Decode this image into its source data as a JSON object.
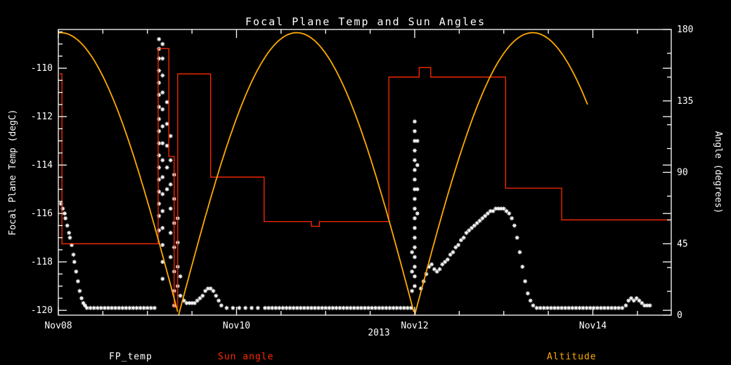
{
  "colors": {
    "background": "#000000",
    "axis": "#ffffff",
    "fp_temp": "#ffffff",
    "sun_angle": "#ff2a00",
    "altitude": "#ffaa00"
  },
  "chart_data": {
    "type": "scatter",
    "title": "Focal Plane Temp and Sun Angles",
    "xlabel": "2013",
    "x_range": [
      0,
      6.88
    ],
    "x_ticks": [
      {
        "t": 0,
        "label": "Nov08"
      },
      {
        "t": 2,
        "label": "Nov10"
      },
      {
        "t": 4,
        "label": "Nov12"
      },
      {
        "t": 6,
        "label": "Nov14"
      }
    ],
    "x_minor_step": 0.5,
    "left_axis": {
      "label": "Focal Plane Temp (degC)",
      "range": [
        -120.2,
        -108.4
      ],
      "ticks": [
        -120,
        -118,
        -116,
        -114,
        -112,
        -110
      ],
      "minor_step": 0.5
    },
    "right_axis": {
      "label": "Angle (degrees)",
      "range": [
        0,
        180
      ],
      "ticks": [
        0,
        45,
        90,
        135,
        180
      ],
      "minor_step": 15
    },
    "legend": [
      {
        "label": "FP_temp",
        "color": "#ffffff"
      },
      {
        "label": "Sun angle",
        "color": "#ff2a00"
      },
      {
        "label": "Altitude",
        "color": "#ffaa00"
      }
    ],
    "series": [
      {
        "name": "FP_temp",
        "axis": "left",
        "type": "scatter",
        "marker": "asterisk",
        "color": "#ffffff",
        "points": [
          [
            0.03,
            -115.6
          ],
          [
            0.05,
            -115.8
          ],
          [
            0.07,
            -116.0
          ],
          [
            0.08,
            -116.2
          ],
          [
            0.1,
            -116.5
          ],
          [
            0.12,
            -116.8
          ],
          [
            0.13,
            -117.0
          ],
          [
            0.15,
            -117.3
          ],
          [
            0.17,
            -117.7
          ],
          [
            0.18,
            -118.0
          ],
          [
            0.2,
            -118.4
          ],
          [
            0.22,
            -118.8
          ],
          [
            0.24,
            -119.2
          ],
          [
            0.26,
            -119.5
          ],
          [
            0.28,
            -119.7
          ],
          [
            0.3,
            -119.8
          ],
          [
            0.32,
            -119.9
          ],
          [
            0.36,
            -119.9
          ],
          [
            0.4,
            -119.9
          ],
          [
            0.44,
            -119.9
          ],
          [
            0.48,
            -119.9
          ],
          [
            0.52,
            -119.9
          ],
          [
            0.56,
            -119.9
          ],
          [
            0.6,
            -119.9
          ],
          [
            0.64,
            -119.9
          ],
          [
            0.68,
            -119.9
          ],
          [
            0.72,
            -119.9
          ],
          [
            0.76,
            -119.9
          ],
          [
            0.8,
            -119.9
          ],
          [
            0.84,
            -119.9
          ],
          [
            0.88,
            -119.9
          ],
          [
            0.92,
            -119.9
          ],
          [
            0.96,
            -119.9
          ],
          [
            1.0,
            -119.9
          ],
          [
            1.04,
            -119.9
          ],
          [
            1.08,
            -119.9
          ],
          [
            1.13,
            -108.8
          ],
          [
            1.13,
            -109.2
          ],
          [
            1.13,
            -109.6
          ],
          [
            1.13,
            -110.1
          ],
          [
            1.13,
            -110.6
          ],
          [
            1.13,
            -111.1
          ],
          [
            1.13,
            -111.6
          ],
          [
            1.13,
            -112.1
          ],
          [
            1.13,
            -112.6
          ],
          [
            1.13,
            -113.1
          ],
          [
            1.13,
            -113.6
          ],
          [
            1.13,
            -114.1
          ],
          [
            1.13,
            -114.6
          ],
          [
            1.13,
            -115.1
          ],
          [
            1.13,
            -115.6
          ],
          [
            1.13,
            -116.1
          ],
          [
            1.13,
            -116.7
          ],
          [
            1.17,
            -109.0
          ],
          [
            1.17,
            -109.6
          ],
          [
            1.17,
            -110.3
          ],
          [
            1.17,
            -111.0
          ],
          [
            1.17,
            -111.7
          ],
          [
            1.17,
            -112.4
          ],
          [
            1.17,
            -113.1
          ],
          [
            1.17,
            -113.8
          ],
          [
            1.17,
            -114.5
          ],
          [
            1.17,
            -115.2
          ],
          [
            1.17,
            -115.9
          ],
          [
            1.17,
            -116.6
          ],
          [
            1.17,
            -117.3
          ],
          [
            1.17,
            -118.0
          ],
          [
            1.17,
            -118.7
          ],
          [
            1.22,
            -111.4
          ],
          [
            1.22,
            -112.3
          ],
          [
            1.22,
            -113.2
          ],
          [
            1.22,
            -114.1
          ],
          [
            1.22,
            -115.0
          ],
          [
            1.26,
            -112.8
          ],
          [
            1.26,
            -113.8
          ],
          [
            1.26,
            -114.8
          ],
          [
            1.26,
            -115.8
          ],
          [
            1.26,
            -116.8
          ],
          [
            1.26,
            -117.8
          ],
          [
            1.3,
            -114.4
          ],
          [
            1.3,
            -115.4
          ],
          [
            1.3,
            -116.4
          ],
          [
            1.3,
            -117.4
          ],
          [
            1.3,
            -118.4
          ],
          [
            1.3,
            -119.2
          ],
          [
            1.3,
            -119.8
          ],
          [
            1.34,
            -116.2
          ],
          [
            1.34,
            -117.2
          ],
          [
            1.34,
            -118.2
          ],
          [
            1.34,
            -119.0
          ],
          [
            1.37,
            -118.6
          ],
          [
            1.37,
            -119.4
          ],
          [
            1.41,
            -119.6
          ],
          [
            1.44,
            -119.7
          ],
          [
            1.47,
            -119.7
          ],
          [
            1.5,
            -119.7
          ],
          [
            1.53,
            -119.7
          ],
          [
            1.56,
            -119.6
          ],
          [
            1.59,
            -119.5
          ],
          [
            1.62,
            -119.4
          ],
          [
            1.65,
            -119.2
          ],
          [
            1.68,
            -119.1
          ],
          [
            1.71,
            -119.1
          ],
          [
            1.74,
            -119.2
          ],
          [
            1.77,
            -119.4
          ],
          [
            1.8,
            -119.6
          ],
          [
            1.83,
            -119.8
          ],
          [
            1.89,
            -119.9
          ],
          [
            1.96,
            -119.9
          ],
          [
            2.03,
            -119.9
          ],
          [
            2.1,
            -119.9
          ],
          [
            2.17,
            -119.9
          ],
          [
            2.24,
            -119.9
          ],
          [
            2.32,
            -119.9
          ],
          [
            2.36,
            -119.9
          ],
          [
            2.4,
            -119.9
          ],
          [
            2.44,
            -119.9
          ],
          [
            2.48,
            -119.9
          ],
          [
            2.52,
            -119.9
          ],
          [
            2.56,
            -119.9
          ],
          [
            2.6,
            -119.9
          ],
          [
            2.64,
            -119.9
          ],
          [
            2.68,
            -119.9
          ],
          [
            2.72,
            -119.9
          ],
          [
            2.76,
            -119.9
          ],
          [
            2.8,
            -119.9
          ],
          [
            2.84,
            -119.9
          ],
          [
            2.88,
            -119.9
          ],
          [
            2.92,
            -119.9
          ],
          [
            2.96,
            -119.9
          ],
          [
            3.0,
            -119.9
          ],
          [
            3.04,
            -119.9
          ],
          [
            3.08,
            -119.9
          ],
          [
            3.12,
            -119.9
          ],
          [
            3.16,
            -119.9
          ],
          [
            3.2,
            -119.9
          ],
          [
            3.24,
            -119.9
          ],
          [
            3.28,
            -119.9
          ],
          [
            3.32,
            -119.9
          ],
          [
            3.36,
            -119.9
          ],
          [
            3.4,
            -119.9
          ],
          [
            3.44,
            -119.9
          ],
          [
            3.48,
            -119.9
          ],
          [
            3.52,
            -119.9
          ],
          [
            3.56,
            -119.9
          ],
          [
            3.6,
            -119.9
          ],
          [
            3.64,
            -119.9
          ],
          [
            3.68,
            -119.9
          ],
          [
            3.72,
            -119.9
          ],
          [
            3.76,
            -119.9
          ],
          [
            3.8,
            -119.9
          ],
          [
            3.84,
            -119.9
          ],
          [
            3.88,
            -119.9
          ],
          [
            3.92,
            -119.9
          ],
          [
            3.96,
            -119.9
          ],
          [
            3.97,
            -117.6
          ],
          [
            3.97,
            -118.4
          ],
          [
            3.97,
            -119.2
          ],
          [
            4.0,
            -112.2
          ],
          [
            4.0,
            -112.6
          ],
          [
            4.0,
            -113.0
          ],
          [
            4.0,
            -113.4
          ],
          [
            4.0,
            -113.8
          ],
          [
            4.0,
            -114.2
          ],
          [
            4.0,
            -114.6
          ],
          [
            4.0,
            -115.0
          ],
          [
            4.0,
            -115.4
          ],
          [
            4.0,
            -115.8
          ],
          [
            4.0,
            -116.2
          ],
          [
            4.0,
            -116.6
          ],
          [
            4.0,
            -117.0
          ],
          [
            4.0,
            -117.4
          ],
          [
            4.0,
            -117.8
          ],
          [
            4.0,
            -118.2
          ],
          [
            4.0,
            -118.6
          ],
          [
            4.0,
            -119.0
          ],
          [
            4.03,
            -113.0
          ],
          [
            4.03,
            -114.0
          ],
          [
            4.03,
            -115.0
          ],
          [
            4.03,
            -116.0
          ],
          [
            4.07,
            -119.1
          ],
          [
            4.1,
            -118.8
          ],
          [
            4.13,
            -118.5
          ],
          [
            4.16,
            -118.2
          ],
          [
            4.19,
            -118.1
          ],
          [
            4.22,
            -118.3
          ],
          [
            4.25,
            -118.4
          ],
          [
            4.28,
            -118.3
          ],
          [
            4.31,
            -118.1
          ],
          [
            4.34,
            -118.0
          ],
          [
            4.37,
            -117.9
          ],
          [
            4.4,
            -117.7
          ],
          [
            4.43,
            -117.6
          ],
          [
            4.46,
            -117.4
          ],
          [
            4.49,
            -117.3
          ],
          [
            4.52,
            -117.1
          ],
          [
            4.55,
            -117.0
          ],
          [
            4.58,
            -116.8
          ],
          [
            4.61,
            -116.7
          ],
          [
            4.64,
            -116.6
          ],
          [
            4.67,
            -116.5
          ],
          [
            4.7,
            -116.4
          ],
          [
            4.73,
            -116.3
          ],
          [
            4.76,
            -116.2
          ],
          [
            4.79,
            -116.1
          ],
          [
            4.82,
            -116.0
          ],
          [
            4.85,
            -115.9
          ],
          [
            4.88,
            -115.9
          ],
          [
            4.91,
            -115.8
          ],
          [
            4.94,
            -115.8
          ],
          [
            4.97,
            -115.8
          ],
          [
            5.0,
            -115.8
          ],
          [
            5.03,
            -115.9
          ],
          [
            5.06,
            -116.0
          ],
          [
            5.09,
            -116.2
          ],
          [
            5.12,
            -116.5
          ],
          [
            5.15,
            -117.0
          ],
          [
            5.18,
            -117.6
          ],
          [
            5.21,
            -118.2
          ],
          [
            5.24,
            -118.8
          ],
          [
            5.27,
            -119.3
          ],
          [
            5.3,
            -119.6
          ],
          [
            5.33,
            -119.8
          ],
          [
            5.37,
            -119.9
          ],
          [
            5.41,
            -119.9
          ],
          [
            5.45,
            -119.9
          ],
          [
            5.49,
            -119.9
          ],
          [
            5.53,
            -119.9
          ],
          [
            5.57,
            -119.9
          ],
          [
            5.61,
            -119.9
          ],
          [
            5.65,
            -119.9
          ],
          [
            5.69,
            -119.9
          ],
          [
            5.73,
            -119.9
          ],
          [
            5.77,
            -119.9
          ],
          [
            5.81,
            -119.9
          ],
          [
            5.85,
            -119.9
          ],
          [
            5.89,
            -119.9
          ],
          [
            5.93,
            -119.9
          ],
          [
            5.97,
            -119.9
          ],
          [
            6.01,
            -119.9
          ],
          [
            6.05,
            -119.9
          ],
          [
            6.09,
            -119.9
          ],
          [
            6.13,
            -119.9
          ],
          [
            6.17,
            -119.9
          ],
          [
            6.21,
            -119.9
          ],
          [
            6.25,
            -119.9
          ],
          [
            6.29,
            -119.9
          ],
          [
            6.33,
            -119.9
          ],
          [
            6.37,
            -119.8
          ],
          [
            6.4,
            -119.6
          ],
          [
            6.43,
            -119.5
          ],
          [
            6.46,
            -119.6
          ],
          [
            6.49,
            -119.5
          ],
          [
            6.52,
            -119.6
          ],
          [
            6.55,
            -119.7
          ],
          [
            6.58,
            -119.8
          ],
          [
            6.61,
            -119.8
          ],
          [
            6.64,
            -119.8
          ]
        ]
      },
      {
        "name": "Sun angle",
        "axis": "right",
        "type": "line",
        "color": "#ff2a00",
        "points": [
          [
            0.015,
            152
          ],
          [
            0.04,
            152
          ],
          [
            0.04,
            45
          ],
          [
            1.12,
            45
          ],
          [
            1.12,
            168
          ],
          [
            1.24,
            168
          ],
          [
            1.24,
            100
          ],
          [
            1.3,
            100
          ],
          [
            1.3,
            5
          ],
          [
            1.34,
            5
          ],
          [
            1.34,
            152
          ],
          [
            1.71,
            152
          ],
          [
            1.71,
            87
          ],
          [
            2.31,
            87
          ],
          [
            2.31,
            59
          ],
          [
            2.84,
            59
          ],
          [
            2.84,
            56
          ],
          [
            2.93,
            56
          ],
          [
            2.93,
            59
          ],
          [
            3.71,
            59
          ],
          [
            3.71,
            150
          ],
          [
            4.05,
            150
          ],
          [
            4.05,
            156
          ],
          [
            4.18,
            156
          ],
          [
            4.18,
            150
          ],
          [
            5.02,
            150
          ],
          [
            5.02,
            80
          ],
          [
            5.65,
            80
          ],
          [
            5.65,
            60
          ],
          [
            6.86,
            60
          ]
        ]
      },
      {
        "name": "Altitude",
        "axis": "right",
        "type": "arcs",
        "color": "#ffaa00",
        "amplitude": 178,
        "arches": [
          {
            "start": -1.3,
            "end": 1.35,
            "clip_from": 0.0
          },
          {
            "start": 1.35,
            "end": 4.0
          },
          {
            "start": 4.0,
            "end": 6.65,
            "clip_to": 5.95
          }
        ]
      }
    ]
  }
}
